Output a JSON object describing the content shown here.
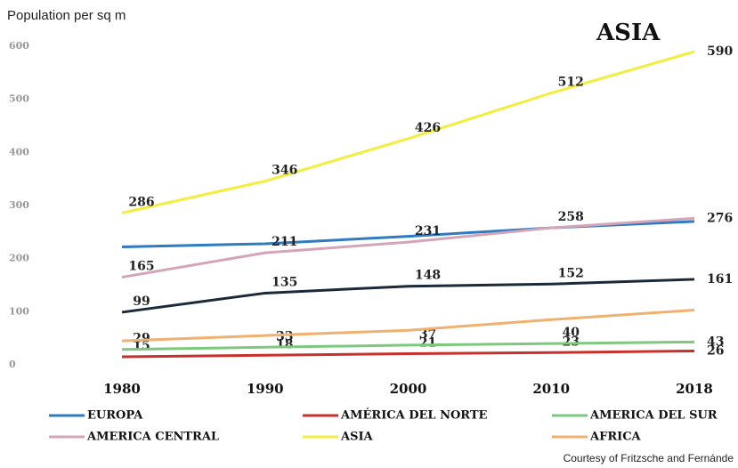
{
  "chart_data": {
    "type": "line",
    "title": "Population per sq m",
    "annotation": "ASIA",
    "source": "Courtesy of Fritzsche and Fernánde",
    "categories": [
      "1980",
      "1990",
      "2000",
      "2010",
      "2018"
    ],
    "ylim": [
      0,
      600
    ],
    "yticks": [
      0,
      100,
      200,
      300,
      400,
      500,
      600
    ],
    "grid": false,
    "legend": "bottom",
    "series": [
      {
        "name": "EUROPA",
        "color": "#2f7bbf",
        "values": [
          222,
          228,
          242,
          258,
          270
        ],
        "data_labels": false
      },
      {
        "name": "AMÉRICA DEL NORTE",
        "color": "#c9302c",
        "values": [
          15,
          18,
          21,
          23,
          26
        ],
        "data_labels": true
      },
      {
        "name": "AMERICA DEL SUR",
        "color": "#7ec87e",
        "values": [
          29,
          33,
          37,
          40,
          43
        ],
        "data_labels": true
      },
      {
        "name": "AMERICA CENTRAL",
        "color": "#d4a5b8",
        "values": [
          165,
          211,
          231,
          258,
          276
        ],
        "data_labels": true
      },
      {
        "name": "ASIA",
        "color": "#f2ee3c",
        "values": [
          286,
          346,
          426,
          512,
          590
        ],
        "data_labels": true
      },
      {
        "name": "AFRICA",
        "color": "#f0b070",
        "values": [
          45,
          55,
          65,
          85,
          103
        ],
        "data_labels": false
      },
      {
        "color": "#1a2a3a",
        "values": [
          99,
          135,
          148,
          152,
          161
        ],
        "data_labels": true
      }
    ]
  }
}
